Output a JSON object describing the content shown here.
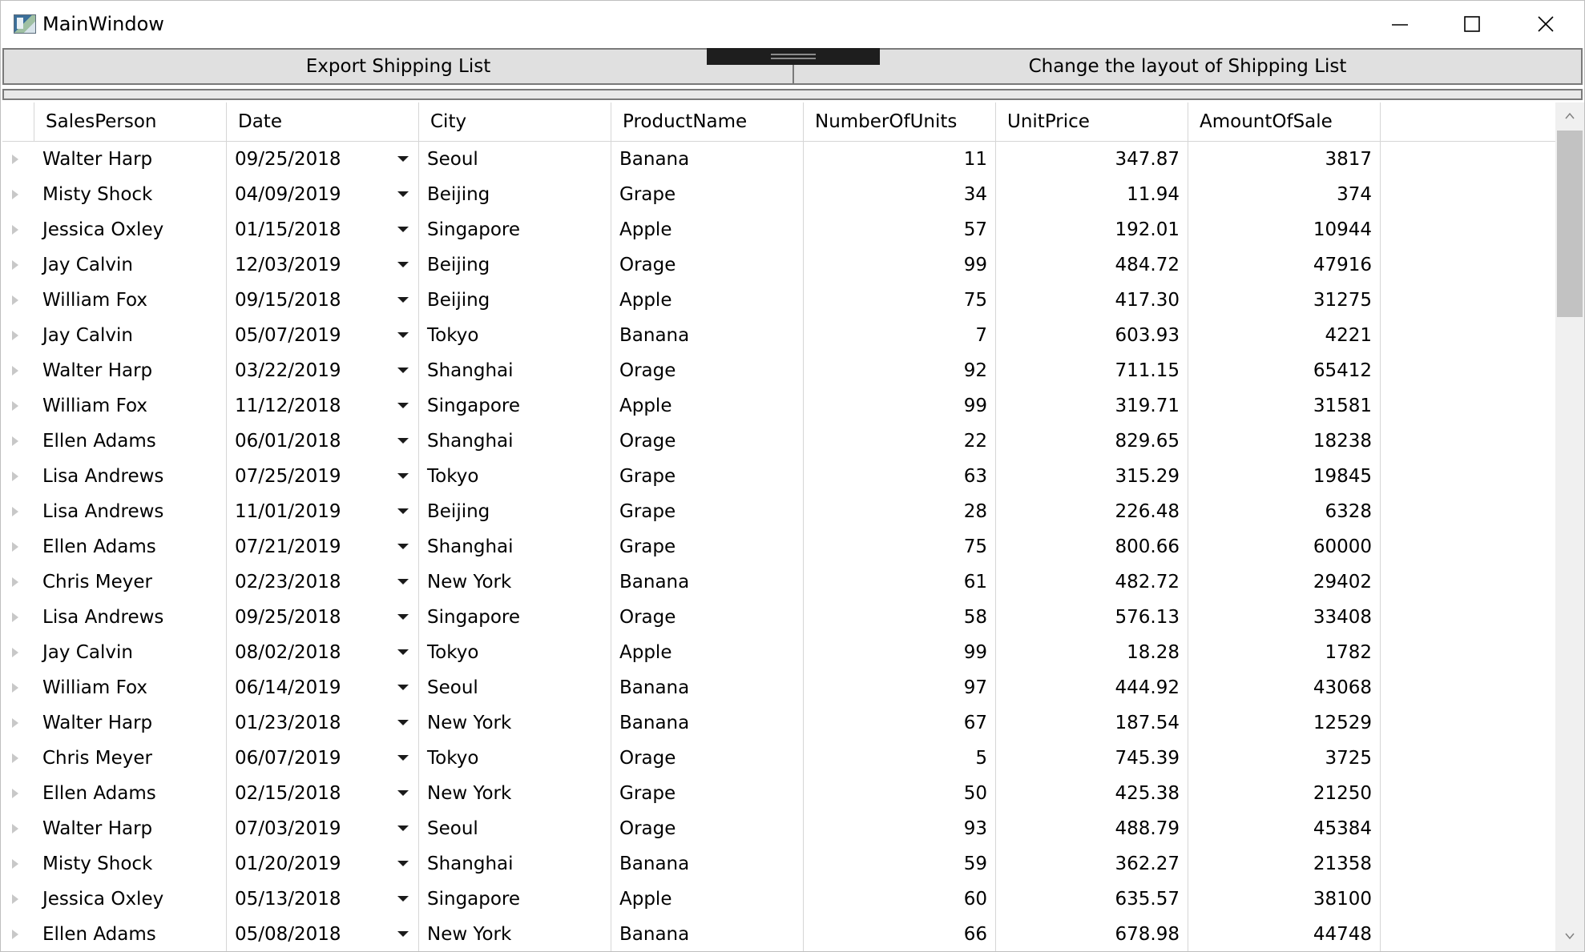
{
  "window": {
    "title": "MainWindow",
    "icon": "app-icon"
  },
  "toolbar": {
    "export_label": "Export Shipping List",
    "layout_label": "Change the layout of Shipping List"
  },
  "grid": {
    "columns": [
      "SalesPerson",
      "Date",
      "City",
      "ProductName",
      "NumberOfUnits",
      "UnitPrice",
      "AmountOfSale"
    ],
    "rows": [
      {
        "sales": "Walter Harp",
        "date": "09/25/2018",
        "city": "Seoul",
        "product": "Banana",
        "units": "11",
        "price": "347.87",
        "amount": "3817"
      },
      {
        "sales": "Misty Shock",
        "date": "04/09/2019",
        "city": "Beijing",
        "product": "Grape",
        "units": "34",
        "price": "11.94",
        "amount": "374"
      },
      {
        "sales": "Jessica Oxley",
        "date": "01/15/2018",
        "city": "Singapore",
        "product": "Apple",
        "units": "57",
        "price": "192.01",
        "amount": "10944"
      },
      {
        "sales": "Jay Calvin",
        "date": "12/03/2019",
        "city": "Beijing",
        "product": "Orage",
        "units": "99",
        "price": "484.72",
        "amount": "47916"
      },
      {
        "sales": "William Fox",
        "date": "09/15/2018",
        "city": "Beijing",
        "product": "Apple",
        "units": "75",
        "price": "417.30",
        "amount": "31275"
      },
      {
        "sales": "Jay Calvin",
        "date": "05/07/2019",
        "city": "Tokyo",
        "product": "Banana",
        "units": "7",
        "price": "603.93",
        "amount": "4221"
      },
      {
        "sales": "Walter Harp",
        "date": "03/22/2019",
        "city": "Shanghai",
        "product": "Orage",
        "units": "92",
        "price": "711.15",
        "amount": "65412"
      },
      {
        "sales": "William Fox",
        "date": "11/12/2018",
        "city": "Singapore",
        "product": "Apple",
        "units": "99",
        "price": "319.71",
        "amount": "31581"
      },
      {
        "sales": "Ellen Adams",
        "date": "06/01/2018",
        "city": "Shanghai",
        "product": "Orage",
        "units": "22",
        "price": "829.65",
        "amount": "18238"
      },
      {
        "sales": "Lisa Andrews",
        "date": "07/25/2019",
        "city": "Tokyo",
        "product": "Grape",
        "units": "63",
        "price": "315.29",
        "amount": "19845"
      },
      {
        "sales": "Lisa Andrews",
        "date": "11/01/2019",
        "city": "Beijing",
        "product": "Grape",
        "units": "28",
        "price": "226.48",
        "amount": "6328"
      },
      {
        "sales": "Ellen Adams",
        "date": "07/21/2019",
        "city": "Shanghai",
        "product": "Grape",
        "units": "75",
        "price": "800.66",
        "amount": "60000"
      },
      {
        "sales": "Chris Meyer",
        "date": "02/23/2018",
        "city": "New York",
        "product": "Banana",
        "units": "61",
        "price": "482.72",
        "amount": "29402"
      },
      {
        "sales": "Lisa Andrews",
        "date": "09/25/2018",
        "city": "Singapore",
        "product": "Orage",
        "units": "58",
        "price": "576.13",
        "amount": "33408"
      },
      {
        "sales": "Jay Calvin",
        "date": "08/02/2018",
        "city": "Tokyo",
        "product": "Apple",
        "units": "99",
        "price": "18.28",
        "amount": "1782"
      },
      {
        "sales": "William Fox",
        "date": "06/14/2019",
        "city": "Seoul",
        "product": "Banana",
        "units": "97",
        "price": "444.92",
        "amount": "43068"
      },
      {
        "sales": "Walter Harp",
        "date": "01/23/2018",
        "city": "New York",
        "product": "Banana",
        "units": "67",
        "price": "187.54",
        "amount": "12529"
      },
      {
        "sales": "Chris Meyer",
        "date": "06/07/2019",
        "city": "Tokyo",
        "product": "Orage",
        "units": "5",
        "price": "745.39",
        "amount": "3725"
      },
      {
        "sales": "Ellen Adams",
        "date": "02/15/2018",
        "city": "New York",
        "product": "Grape",
        "units": "50",
        "price": "425.38",
        "amount": "21250"
      },
      {
        "sales": "Walter Harp",
        "date": "07/03/2019",
        "city": "Seoul",
        "product": "Orage",
        "units": "93",
        "price": "488.79",
        "amount": "45384"
      },
      {
        "sales": "Misty Shock",
        "date": "01/20/2019",
        "city": "Shanghai",
        "product": "Banana",
        "units": "59",
        "price": "362.27",
        "amount": "21358"
      },
      {
        "sales": "Jessica Oxley",
        "date": "05/13/2018",
        "city": "Singapore",
        "product": "Apple",
        "units": "60",
        "price": "635.57",
        "amount": "38100"
      },
      {
        "sales": "Ellen Adams",
        "date": "05/08/2018",
        "city": "New York",
        "product": "Banana",
        "units": "66",
        "price": "678.98",
        "amount": "44748"
      }
    ]
  }
}
